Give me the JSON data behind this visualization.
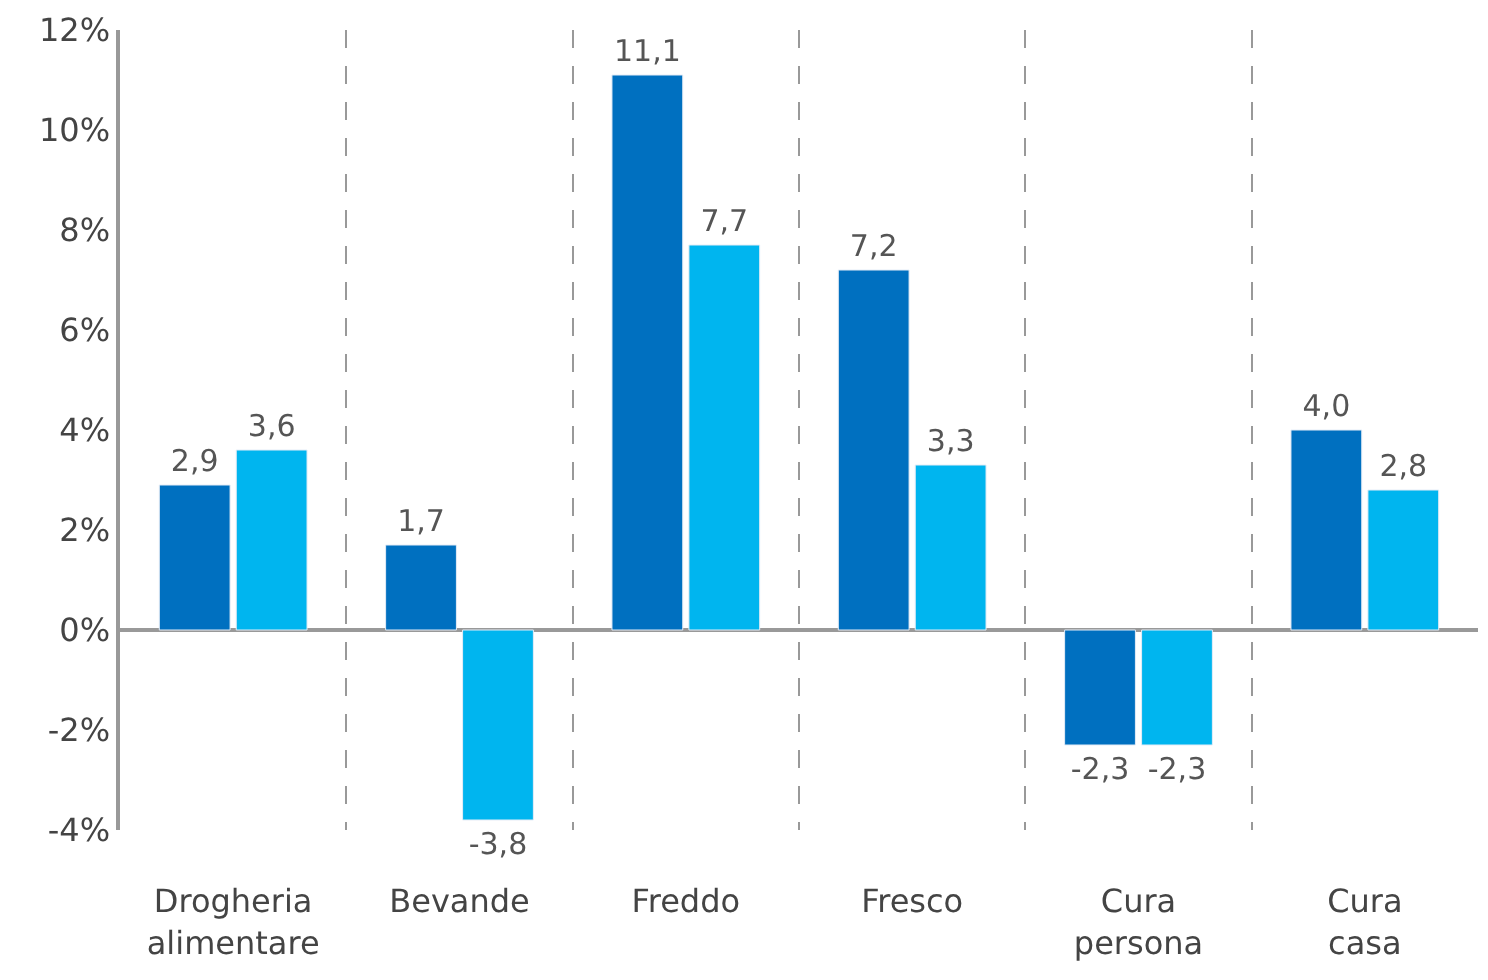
{
  "chart_data": {
    "type": "bar",
    "categories": [
      "Drogheria alimentare",
      "Bevande",
      "Freddo",
      "Fresco",
      "Cura persona",
      "Cura casa"
    ],
    "series": [
      {
        "color": "#0070c0",
        "values": [
          2.9,
          1.7,
          11.1,
          7.2,
          -2.3,
          4.0
        ],
        "value_labels": [
          "2,9",
          "1,7",
          "11,1",
          "7,2",
          "-2,3",
          "4,0"
        ]
      },
      {
        "color": "#00b5ef",
        "values": [
          3.6,
          -3.8,
          7.7,
          3.3,
          -2.3,
          2.8
        ],
        "value_labels": [
          "3,6",
          "-3,8",
          "7,7",
          "3,3",
          "-2,3",
          "2,8"
        ]
      }
    ],
    "ylim": [
      -4,
      12
    ],
    "yticks": [
      {
        "value": -4,
        "label": "-4%"
      },
      {
        "value": -2,
        "label": "-2%"
      },
      {
        "value": 0,
        "label": "0%"
      },
      {
        "value": 2,
        "label": "2%"
      },
      {
        "value": 4,
        "label": "4%"
      },
      {
        "value": 6,
        "label": "6%"
      },
      {
        "value": 8,
        "label": "8%"
      },
      {
        "value": 10,
        "label": "10%"
      },
      {
        "value": 12,
        "label": "12%"
      }
    ],
    "grid": "x",
    "legend": false
  }
}
